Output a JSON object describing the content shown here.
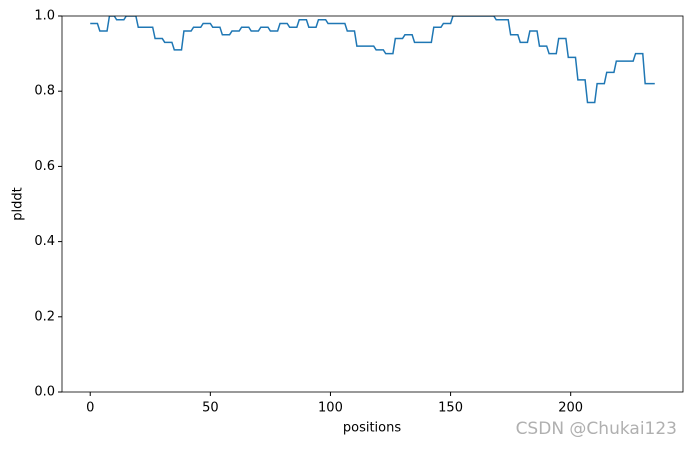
{
  "chart_data": {
    "type": "line",
    "xlabel": "positions",
    "ylabel": "plddt",
    "watermark": "CSDN @Chukai123",
    "x": [
      0,
      3,
      4,
      7,
      8,
      10,
      11,
      14,
      15,
      19,
      20,
      26,
      27,
      30,
      31,
      34,
      35,
      38,
      39,
      42,
      43,
      46,
      47,
      50,
      51,
      54,
      55,
      58,
      59,
      62,
      63,
      66,
      67,
      70,
      71,
      74,
      75,
      78,
      79,
      82,
      83,
      86,
      87,
      90,
      91,
      94,
      95,
      98,
      99,
      106,
      107,
      110,
      111,
      118,
      119,
      122,
      123,
      126,
      127,
      130,
      131,
      134,
      135,
      142,
      143,
      146,
      147,
      150,
      151,
      168,
      169,
      174,
      175,
      178,
      179,
      182,
      183,
      186,
      187,
      190,
      191,
      194,
      195,
      198,
      199,
      202,
      203,
      206,
      207,
      210,
      211,
      214,
      215,
      218,
      219,
      226,
      227,
      230,
      231,
      235
    ],
    "values": [
      0.98,
      0.98,
      0.96,
      0.96,
      1,
      1,
      0.99,
      0.99,
      1,
      1,
      0.97,
      0.97,
      0.94,
      0.94,
      0.93,
      0.93,
      0.91,
      0.91,
      0.96,
      0.96,
      0.97,
      0.97,
      0.98,
      0.98,
      0.97,
      0.97,
      0.95,
      0.95,
      0.96,
      0.96,
      0.97,
      0.97,
      0.96,
      0.96,
      0.97,
      0.97,
      0.96,
      0.96,
      0.98,
      0.98,
      0.97,
      0.97,
      0.99,
      0.99,
      0.97,
      0.97,
      0.99,
      0.99,
      0.98,
      0.98,
      0.96,
      0.96,
      0.92,
      0.92,
      0.91,
      0.91,
      0.9,
      0.9,
      0.94,
      0.94,
      0.95,
      0.95,
      0.93,
      0.93,
      0.97,
      0.97,
      0.98,
      0.98,
      1,
      1,
      0.99,
      0.99,
      0.95,
      0.95,
      0.93,
      0.93,
      0.96,
      0.96,
      0.92,
      0.92,
      0.9,
      0.9,
      0.94,
      0.94,
      0.89,
      0.89,
      0.83,
      0.83,
      0.77,
      0.77,
      0.82,
      0.82,
      0.85,
      0.85,
      0.88,
      0.88,
      0.9,
      0.9,
      0.82,
      0.82
    ],
    "color": "#1f77b4",
    "xlim": [
      -11.75,
      246.75
    ],
    "xticks": [
      0,
      50,
      100,
      150,
      200
    ],
    "ylim": [
      0,
      1
    ],
    "yticks": [
      {
        "value": 0,
        "label": "0.0"
      },
      0.2,
      0.4,
      0.6,
      0.8,
      {
        "value": 1,
        "label": "1.0"
      }
    ]
  }
}
